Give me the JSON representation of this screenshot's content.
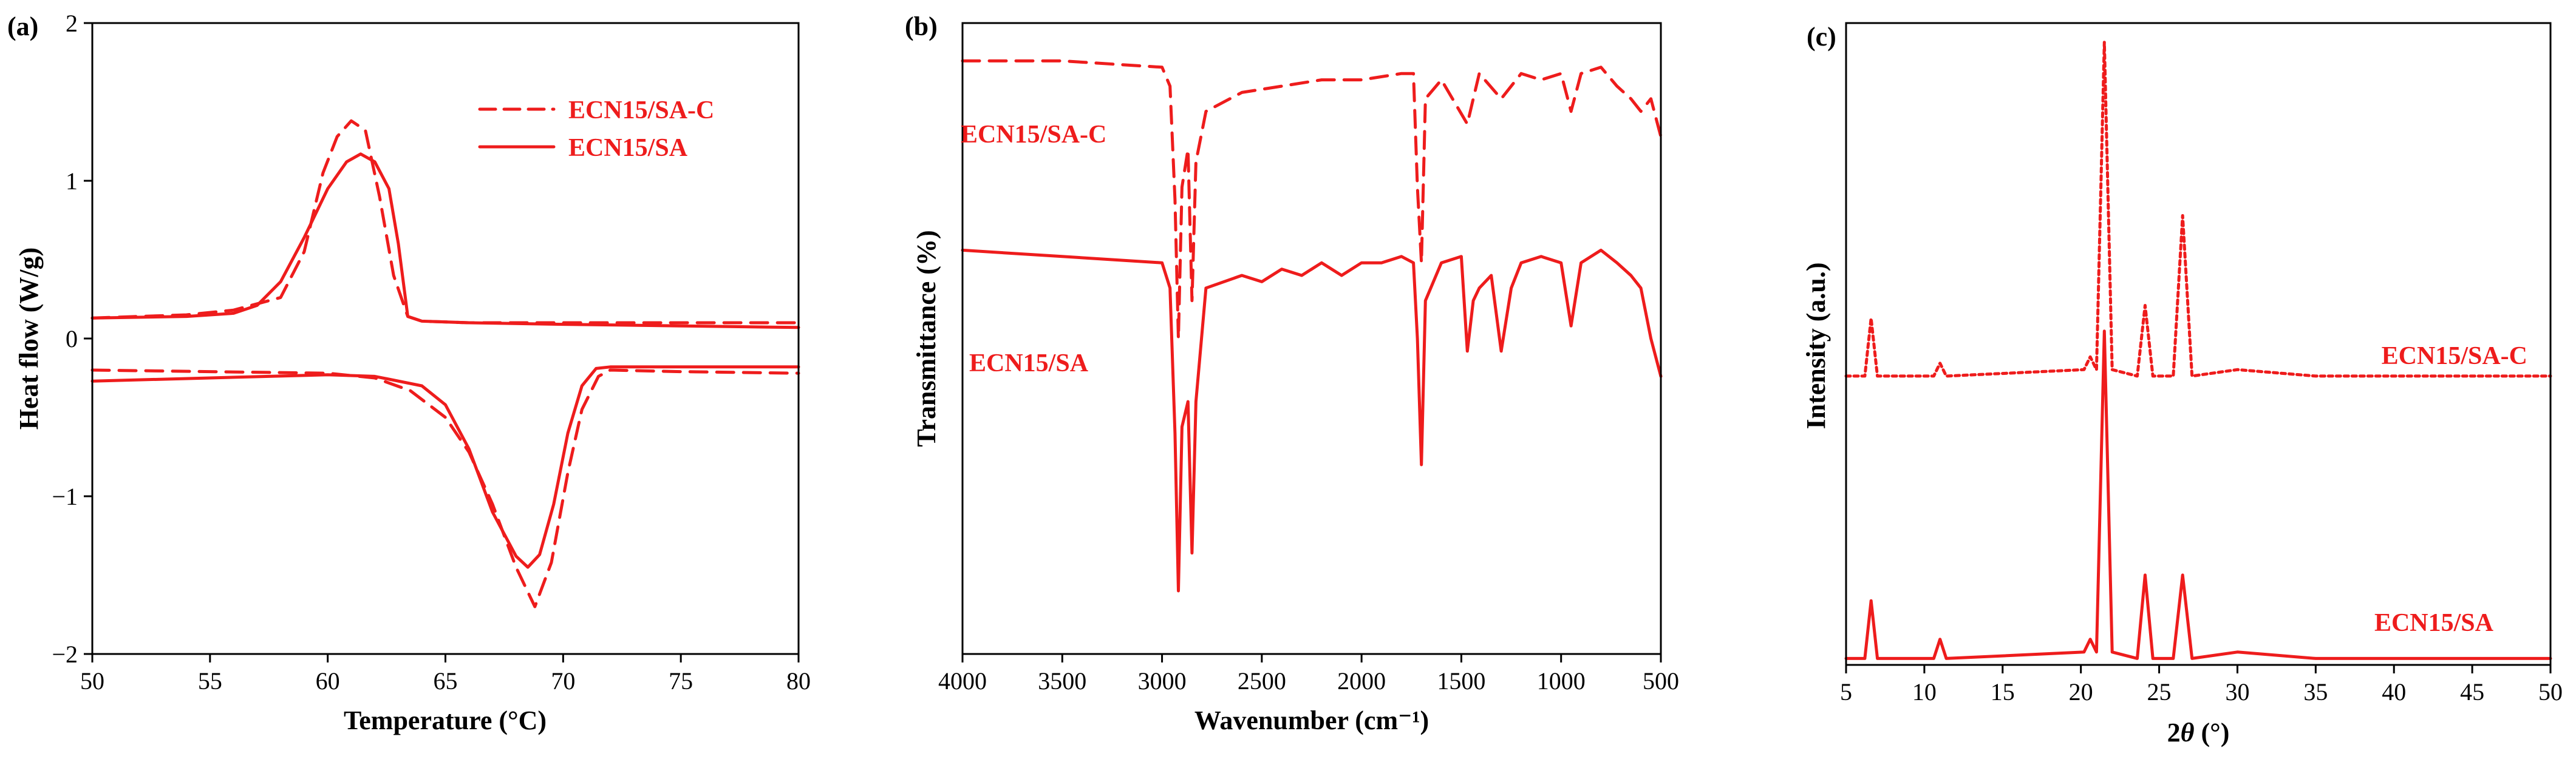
{
  "colors": {
    "series": "#ee1c1c",
    "axis": "#000000"
  },
  "chart_data": [
    {
      "panel": "(a)",
      "type": "line",
      "title": "",
      "xlabel": "Temperature (°C)",
      "ylabel": "Heat flow (W/g)",
      "xlim": [
        50,
        80
      ],
      "ylim": [
        -2,
        2
      ],
      "xticks": [
        "50",
        "55",
        "60",
        "65",
        "70",
        "75",
        "80"
      ],
      "yticks": [
        "−2",
        "−1",
        "0",
        "1",
        "2"
      ],
      "legend": [
        {
          "label": "ECN15/SA-C",
          "style": "dashed"
        },
        {
          "label": "ECN15/SA",
          "style": "solid"
        }
      ],
      "series": [
        {
          "name": "ECN15/SA (heating)",
          "style": "solid",
          "x": [
            50,
            54,
            56,
            57,
            58,
            59,
            60,
            60.8,
            61.4,
            62,
            62.6,
            63,
            63.4,
            64,
            66,
            70,
            75,
            80
          ],
          "y": [
            0.13,
            0.14,
            0.16,
            0.21,
            0.36,
            0.64,
            0.95,
            1.12,
            1.17,
            1.12,
            0.95,
            0.6,
            0.14,
            0.11,
            0.1,
            0.09,
            0.08,
            0.07
          ]
        },
        {
          "name": "ECN15/SA-C (heating)",
          "style": "dashed",
          "x": [
            50,
            54,
            56,
            57,
            58,
            59,
            59.8,
            60.4,
            61,
            61.6,
            62.2,
            62.8,
            63.4,
            64,
            66,
            70,
            75,
            80
          ],
          "y": [
            0.13,
            0.15,
            0.18,
            0.22,
            0.26,
            0.55,
            1.05,
            1.28,
            1.38,
            1.32,
            0.9,
            0.4,
            0.14,
            0.11,
            0.1,
            0.1,
            0.1,
            0.1
          ]
        },
        {
          "name": "ECN15/SA (cooling)",
          "style": "solid",
          "x": [
            50,
            55,
            60,
            62,
            64,
            65,
            66,
            67,
            68,
            68.5,
            69,
            69.6,
            70.2,
            70.8,
            71.4,
            72,
            75,
            80
          ],
          "y": [
            -0.27,
            -0.25,
            -0.23,
            -0.24,
            -0.3,
            -0.42,
            -0.7,
            -1.1,
            -1.38,
            -1.45,
            -1.37,
            -1.05,
            -0.6,
            -0.3,
            -0.19,
            -0.18,
            -0.18,
            -0.18
          ]
        },
        {
          "name": "ECN15/SA-C (cooling)",
          "style": "dashed",
          "x": [
            50,
            55,
            60,
            62,
            63.5,
            65,
            66,
            67,
            68,
            68.8,
            69.5,
            70.2,
            70.8,
            71.5,
            72,
            75,
            80
          ],
          "y": [
            -0.2,
            -0.21,
            -0.22,
            -0.25,
            -0.33,
            -0.5,
            -0.72,
            -1.05,
            -1.45,
            -1.7,
            -1.42,
            -0.85,
            -0.45,
            -0.24,
            -0.2,
            -0.21,
            -0.22
          ]
        }
      ]
    },
    {
      "panel": "(b)",
      "type": "line",
      "title": "",
      "xlabel": "Wavenumber (cm⁻¹)",
      "ylabel": "Transmittance (%)",
      "xlim": [
        4000,
        500
      ],
      "ylim": [
        0,
        100
      ],
      "xticks": [
        "4000",
        "3500",
        "3000",
        "2500",
        "2000",
        "1500",
        "1000",
        "500"
      ],
      "series_labels": [
        "ECN15/SA-C",
        "ECN15/SA"
      ],
      "series": [
        {
          "name": "ECN15/SA-C",
          "style": "dashed",
          "x": [
            4000,
            3500,
            3000,
            2960,
            2935,
            2918,
            2900,
            2870,
            2850,
            2830,
            2780,
            2600,
            2400,
            2200,
            2000,
            1800,
            1740,
            1720,
            1700,
            1680,
            1600,
            1470,
            1440,
            1410,
            1300,
            1200,
            1100,
            1000,
            950,
            900,
            800,
            720,
            650,
            600,
            550,
            500
          ],
          "y": [
            94,
            94,
            93,
            90,
            72,
            50,
            74,
            80,
            56,
            78,
            86,
            89,
            90,
            91,
            91,
            92,
            92,
            74,
            62,
            88,
            91,
            84,
            88,
            92,
            88,
            92,
            91,
            92,
            86,
            92,
            93,
            90,
            88,
            86,
            88,
            82
          ]
        },
        {
          "name": "ECN15/SA",
          "style": "solid",
          "x": [
            4000,
            3500,
            3000,
            2960,
            2935,
            2918,
            2900,
            2870,
            2850,
            2830,
            2780,
            2600,
            2500,
            2400,
            2300,
            2200,
            2100,
            2000,
            1900,
            1800,
            1740,
            1720,
            1700,
            1680,
            1600,
            1500,
            1470,
            1440,
            1410,
            1350,
            1300,
            1250,
            1200,
            1100,
            1000,
            950,
            900,
            800,
            720,
            650,
            600,
            550,
            500
          ],
          "y": [
            64,
            63,
            62,
            58,
            35,
            10,
            36,
            40,
            16,
            40,
            58,
            60,
            59,
            61,
            60,
            62,
            60,
            62,
            62,
            63,
            62,
            50,
            30,
            56,
            62,
            63,
            48,
            56,
            58,
            60,
            48,
            58,
            62,
            63,
            62,
            52,
            62,
            64,
            62,
            60,
            58,
            50,
            44
          ]
        }
      ]
    },
    {
      "panel": "(c)",
      "type": "line",
      "title": "",
      "xlabel": "2θ (°)",
      "ylabel": "Intensity (a.u.)",
      "xlim": [
        5,
        50
      ],
      "ylim": [
        0,
        100
      ],
      "xticks": [
        "5",
        "10",
        "15",
        "20",
        "25",
        "30",
        "35",
        "40",
        "45",
        "50"
      ],
      "series_labels": [
        "ECN15/SA-C",
        "ECN15/SA"
      ],
      "series": [
        {
          "name": "ECN15/SA-C",
          "style": "dotted",
          "x": [
            5,
            6.2,
            6.6,
            7.0,
            10.6,
            11.0,
            11.4,
            20.2,
            20.6,
            21.0,
            21.5,
            22.0,
            23.6,
            24.1,
            24.6,
            25.9,
            26.5,
            27.1,
            30,
            35,
            40,
            45,
            50
          ],
          "y": [
            45,
            45,
            54,
            45,
            45,
            47,
            45,
            46,
            48,
            46,
            97,
            46,
            45,
            56,
            45,
            45,
            70,
            45,
            46,
            45,
            45,
            45,
            45
          ]
        },
        {
          "name": "ECN15/SA",
          "style": "solid",
          "x": [
            5,
            6.2,
            6.6,
            7.0,
            10.6,
            11.0,
            11.4,
            20.2,
            20.6,
            21.0,
            21.5,
            22.0,
            23.6,
            24.1,
            24.6,
            25.9,
            26.5,
            27.1,
            30,
            35,
            40,
            45,
            50
          ],
          "y": [
            1,
            1,
            10,
            1,
            1,
            4,
            1,
            2,
            4,
            2,
            52,
            2,
            1,
            14,
            1,
            1,
            14,
            1,
            2,
            1,
            1,
            1,
            1
          ]
        }
      ]
    }
  ]
}
